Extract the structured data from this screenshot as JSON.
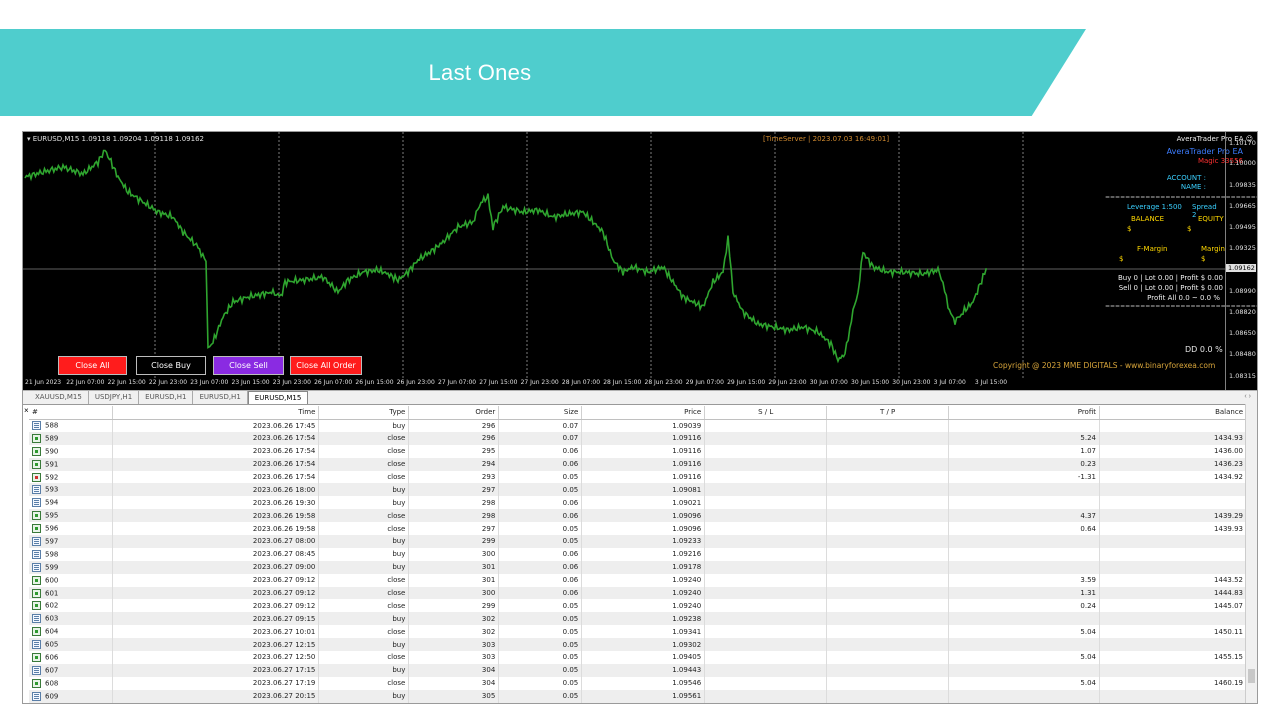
{
  "slide": {
    "title": "Last Ones"
  },
  "chart": {
    "symbol_info": "EURUSD,M15  1.09118 1.09204 1.09118 1.09162",
    "time_server": "[TimeServer | 2023.07.03 16:49:01]",
    "current_price": "1.09162",
    "price_labels": [
      "1.10170",
      "1.10000",
      "1.09835",
      "1.09665",
      "1.09495",
      "1.09325",
      "1.09162",
      "1.08990",
      "1.08820",
      "1.08650",
      "1.08480",
      "1.08315"
    ],
    "time_labels": [
      "21 Jun 2023",
      "22 Jun 07:00",
      "22 Jun 15:00",
      "22 Jun 23:00",
      "23 Jun 07:00",
      "23 Jun 15:00",
      "23 Jun 23:00",
      "26 Jun 07:00",
      "26 Jun 15:00",
      "26 Jun 23:00",
      "27 Jun 07:00",
      "27 Jun 15:00",
      "27 Jun 23:00",
      "28 Jun 07:00",
      "28 Jun 15:00",
      "28 Jun 23:00",
      "29 Jun 07:00",
      "29 Jun 15:00",
      "29 Jun 23:00",
      "30 Jun 07:00",
      "30 Jun 15:00",
      "30 Jun 23:00",
      "3 Jul 07:00",
      "3 Jul 15:00"
    ],
    "colors": {
      "candles": "#2fa52f",
      "background": "#000000",
      "grid": "#9a9a9a",
      "price_line": "#808080"
    }
  },
  "ea_panel": {
    "header": "AveraTrader Pro EA ☺",
    "name": "AveraTrader Pro EA",
    "magic": "Magic  33556",
    "account": "ACCOUNT :",
    "account_name": "NAME :",
    "separator": "================================",
    "leverage": "Leverage  1:500",
    "spread": "Spread  2",
    "balance_label": "BALANCE",
    "balance_value": "$",
    "equity_label": "EQUITY",
    "equity_value": "$",
    "fmargin_label": "F-Margin",
    "fmargin_value": "$",
    "margin_label": "Margin",
    "margin_value": "$",
    "buy_line": "Buy  0  |  Lot 0.00  |  Profit $ 0.00",
    "sell_line": "Sell  0  |  Lot 0.00  |  Profit $ 0.00",
    "profit_all": "Profit All 0.0 ~ 0.0 %",
    "separator2": "================================",
    "dd": "DD 0.0 %",
    "copyright": "Copyright @ 2023 MME DIGITALS - www.binaryforexea.com"
  },
  "buttons": {
    "close_all": "Close All",
    "close_buy": "Close Buy",
    "close_sell": "Close Sell",
    "close_all_order": "Close All Order"
  },
  "tabs": [
    "XAUUSD,M15",
    "USDJPY,H1",
    "EURUSD,H1",
    "EURUSD,H1",
    "EURUSD,M15"
  ],
  "table": {
    "headers": [
      "#",
      "Time",
      "Type",
      "Order",
      "Size",
      "Price",
      "S / L",
      "T / P",
      "Profit",
      "Balance"
    ],
    "rows": [
      {
        "id": "588",
        "time": "2023.06.26 17:45",
        "type": "buy",
        "order": "296",
        "size": "0.07",
        "price": "1.09039",
        "sl": "",
        "tp": "",
        "profit": "",
        "balance": ""
      },
      {
        "id": "589",
        "time": "2023.06.26 17:54",
        "type": "close",
        "order": "296",
        "size": "0.07",
        "price": "1.09116",
        "sl": "",
        "tp": "",
        "profit": "5.24",
        "balance": "1434.93"
      },
      {
        "id": "590",
        "time": "2023.06.26 17:54",
        "type": "close",
        "order": "295",
        "size": "0.06",
        "price": "1.09116",
        "sl": "",
        "tp": "",
        "profit": "1.07",
        "balance": "1436.00"
      },
      {
        "id": "591",
        "time": "2023.06.26 17:54",
        "type": "close",
        "order": "294",
        "size": "0.06",
        "price": "1.09116",
        "sl": "",
        "tp": "",
        "profit": "0.23",
        "balance": "1436.23"
      },
      {
        "id": "592",
        "time": "2023.06.26 17:54",
        "type": "close",
        "order": "293",
        "size": "0.05",
        "price": "1.09116",
        "sl": "",
        "tp": "",
        "profit": "-1.31",
        "balance": "1434.92"
      },
      {
        "id": "593",
        "time": "2023.06.26 18:00",
        "type": "buy",
        "order": "297",
        "size": "0.05",
        "price": "1.09081",
        "sl": "",
        "tp": "",
        "profit": "",
        "balance": ""
      },
      {
        "id": "594",
        "time": "2023.06.26 19:30",
        "type": "buy",
        "order": "298",
        "size": "0.06",
        "price": "1.09021",
        "sl": "",
        "tp": "",
        "profit": "",
        "balance": ""
      },
      {
        "id": "595",
        "time": "2023.06.26 19:58",
        "type": "close",
        "order": "298",
        "size": "0.06",
        "price": "1.09096",
        "sl": "",
        "tp": "",
        "profit": "4.37",
        "balance": "1439.29"
      },
      {
        "id": "596",
        "time": "2023.06.26 19:58",
        "type": "close",
        "order": "297",
        "size": "0.05",
        "price": "1.09096",
        "sl": "",
        "tp": "",
        "profit": "0.64",
        "balance": "1439.93"
      },
      {
        "id": "597",
        "time": "2023.06.27 08:00",
        "type": "buy",
        "order": "299",
        "size": "0.05",
        "price": "1.09233",
        "sl": "",
        "tp": "",
        "profit": "",
        "balance": ""
      },
      {
        "id": "598",
        "time": "2023.06.27 08:45",
        "type": "buy",
        "order": "300",
        "size": "0.06",
        "price": "1.09216",
        "sl": "",
        "tp": "",
        "profit": "",
        "balance": ""
      },
      {
        "id": "599",
        "time": "2023.06.27 09:00",
        "type": "buy",
        "order": "301",
        "size": "0.06",
        "price": "1.09178",
        "sl": "",
        "tp": "",
        "profit": "",
        "balance": ""
      },
      {
        "id": "600",
        "time": "2023.06.27 09:12",
        "type": "close",
        "order": "301",
        "size": "0.06",
        "price": "1.09240",
        "sl": "",
        "tp": "",
        "profit": "3.59",
        "balance": "1443.52"
      },
      {
        "id": "601",
        "time": "2023.06.27 09:12",
        "type": "close",
        "order": "300",
        "size": "0.06",
        "price": "1.09240",
        "sl": "",
        "tp": "",
        "profit": "1.31",
        "balance": "1444.83"
      },
      {
        "id": "602",
        "time": "2023.06.27 09:12",
        "type": "close",
        "order": "299",
        "size": "0.05",
        "price": "1.09240",
        "sl": "",
        "tp": "",
        "profit": "0.24",
        "balance": "1445.07"
      },
      {
        "id": "603",
        "time": "2023.06.27 09:15",
        "type": "buy",
        "order": "302",
        "size": "0.05",
        "price": "1.09238",
        "sl": "",
        "tp": "",
        "profit": "",
        "balance": ""
      },
      {
        "id": "604",
        "time": "2023.06.27 10:01",
        "type": "close",
        "order": "302",
        "size": "0.05",
        "price": "1.09341",
        "sl": "",
        "tp": "",
        "profit": "5.04",
        "balance": "1450.11"
      },
      {
        "id": "605",
        "time": "2023.06.27 12:15",
        "type": "buy",
        "order": "303",
        "size": "0.05",
        "price": "1.09302",
        "sl": "",
        "tp": "",
        "profit": "",
        "balance": ""
      },
      {
        "id": "606",
        "time": "2023.06.27 12:50",
        "type": "close",
        "order": "303",
        "size": "0.05",
        "price": "1.09405",
        "sl": "",
        "tp": "",
        "profit": "5.04",
        "balance": "1455.15"
      },
      {
        "id": "607",
        "time": "2023.06.27 17:15",
        "type": "buy",
        "order": "304",
        "size": "0.05",
        "price": "1.09443",
        "sl": "",
        "tp": "",
        "profit": "",
        "balance": ""
      },
      {
        "id": "608",
        "time": "2023.06.27 17:19",
        "type": "close",
        "order": "304",
        "size": "0.05",
        "price": "1.09546",
        "sl": "",
        "tp": "",
        "profit": "5.04",
        "balance": "1460.19"
      },
      {
        "id": "609",
        "time": "2023.06.27 20:15",
        "type": "buy",
        "order": "305",
        "size": "0.05",
        "price": "1.09561",
        "sl": "",
        "tp": "",
        "profit": "",
        "balance": ""
      }
    ]
  }
}
